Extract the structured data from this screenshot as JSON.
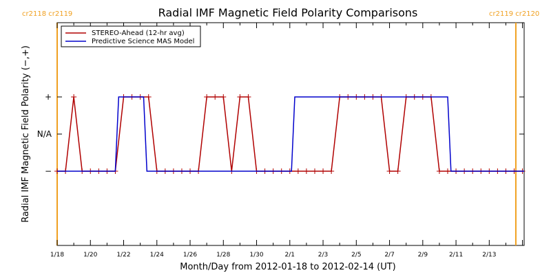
{
  "chart_data": {
    "type": "line",
    "title": "Radial IMF Magnetic Field Polarity Comparisons",
    "xlabel": "Month/Day from 2012-01-18 to 2012-02-14 (UT)",
    "ylabel": "Radial IMF Magnetic Field Polarity (−,+)",
    "xlim": [
      0,
      28.1
    ],
    "ylim": [
      -1,
      2
    ],
    "x_ticks": [
      {
        "x": 0,
        "label": "1/18"
      },
      {
        "x": 2,
        "label": "1/20"
      },
      {
        "x": 4,
        "label": "1/22"
      },
      {
        "x": 6,
        "label": "1/24"
      },
      {
        "x": 8,
        "label": "1/26"
      },
      {
        "x": 10,
        "label": "1/28"
      },
      {
        "x": 12,
        "label": "1/30"
      },
      {
        "x": 14,
        "label": "2/1"
      },
      {
        "x": 16,
        "label": "2/3"
      },
      {
        "x": 18,
        "label": "2/5"
      },
      {
        "x": 20,
        "label": "2/7"
      },
      {
        "x": 22,
        "label": "2/9"
      },
      {
        "x": 24,
        "label": "2/11"
      },
      {
        "x": 26,
        "label": "2/13"
      }
    ],
    "y_ticks": [
      {
        "y": 0,
        "label": "−"
      },
      {
        "y": 0.5,
        "label": "N/A"
      },
      {
        "y": 1,
        "label": "+"
      }
    ],
    "series": [
      {
        "name": "STEREO-Ahead (12-hr avg)",
        "color": "#b00000",
        "marker": "plus",
        "points": [
          [
            0,
            0
          ],
          [
            0.5,
            0
          ],
          [
            1,
            1
          ],
          [
            1.5,
            0
          ],
          [
            2,
            0
          ],
          [
            2.5,
            0
          ],
          [
            3,
            0
          ],
          [
            3.5,
            0
          ],
          [
            4,
            1
          ],
          [
            4.5,
            1
          ],
          [
            5,
            1
          ],
          [
            5.5,
            1
          ],
          [
            6,
            0
          ],
          [
            6.5,
            0
          ],
          [
            7,
            0
          ],
          [
            7.5,
            0
          ],
          [
            8,
            0
          ],
          [
            8.5,
            0
          ],
          [
            9,
            1
          ],
          [
            9.5,
            1
          ],
          [
            10,
            1
          ],
          [
            10.5,
            0
          ],
          [
            11,
            1
          ],
          [
            11.5,
            1
          ],
          [
            12,
            0
          ],
          [
            12.5,
            0
          ],
          [
            13,
            0
          ],
          [
            13.5,
            0
          ],
          [
            14,
            0
          ],
          [
            14.5,
            0
          ],
          [
            15,
            0
          ],
          [
            15.5,
            0
          ],
          [
            16,
            0
          ],
          [
            16.5,
            0
          ],
          [
            17,
            1
          ],
          [
            17.5,
            1
          ],
          [
            18,
            1
          ],
          [
            18.5,
            1
          ],
          [
            19,
            1
          ],
          [
            19.5,
            1
          ],
          [
            20,
            0
          ],
          [
            20.5,
            0
          ],
          [
            21,
            1
          ],
          [
            21.5,
            1
          ],
          [
            22,
            1
          ],
          [
            22.5,
            1
          ],
          [
            23,
            0
          ],
          [
            23.5,
            0
          ],
          [
            24,
            0
          ],
          [
            24.5,
            0
          ],
          [
            25,
            0
          ],
          [
            25.5,
            0
          ],
          [
            26,
            0
          ],
          [
            26.5,
            0
          ],
          [
            27,
            0
          ],
          [
            27.5,
            0
          ],
          [
            28,
            0
          ]
        ]
      },
      {
        "name": "Predictive Science MAS Model",
        "color": "#0000cc",
        "marker": "none",
        "points": [
          [
            0,
            0
          ],
          [
            3.5,
            0
          ],
          [
            3.7,
            1
          ],
          [
            5.2,
            1
          ],
          [
            5.4,
            0
          ],
          [
            14.1,
            0
          ],
          [
            14.3,
            1
          ],
          [
            23.5,
            1
          ],
          [
            23.7,
            0
          ],
          [
            28.1,
            0
          ]
        ]
      }
    ],
    "vlines": [
      {
        "x": 0,
        "color": "#f0a020"
      },
      {
        "x": 27.6,
        "color": "#f0a020"
      }
    ],
    "corner_labels": {
      "left": "cr2118 cr2119",
      "right": "cr2119 cr2120"
    },
    "legend_position": "top-left",
    "colors": {
      "axis": "#000000",
      "carrington": "#f0a020"
    }
  }
}
